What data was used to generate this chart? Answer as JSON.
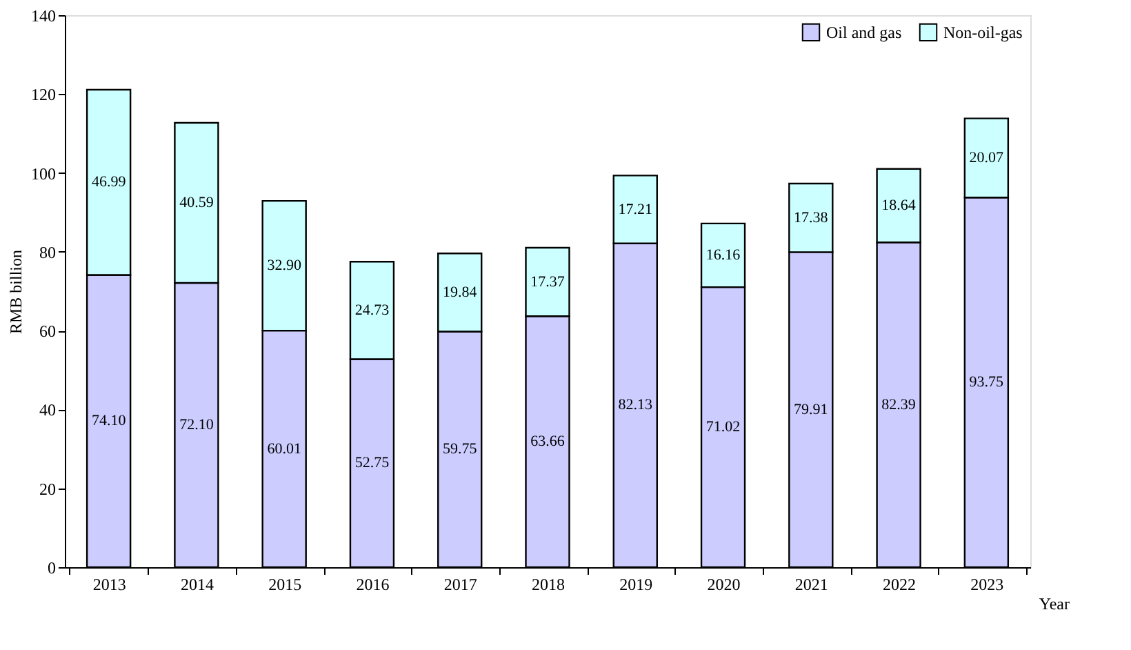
{
  "chart_data": {
    "type": "bar",
    "stacked": true,
    "xlabel": "Year",
    "ylabel": "RMB billion",
    "categories": [
      "2013",
      "2014",
      "2015",
      "2016",
      "2017",
      "2018",
      "2019",
      "2020",
      "2021",
      "2022",
      "2023"
    ],
    "series": [
      {
        "name": "Oil and gas",
        "color": "#ccccff",
        "values": [
          74.1,
          72.1,
          60.01,
          52.75,
          59.75,
          63.66,
          82.13,
          71.02,
          79.91,
          82.39,
          93.75
        ],
        "value_labels": [
          "74.10",
          "72.10",
          "60.01",
          "52.75",
          "59.75",
          "63.66",
          "82.13",
          "71.02",
          "79.91",
          "82.39",
          "93.75"
        ]
      },
      {
        "name": "Non-oil-gas",
        "color": "#ccffff",
        "values": [
          46.99,
          40.59,
          32.9,
          24.73,
          19.84,
          17.37,
          17.21,
          16.16,
          17.38,
          18.64,
          20.07
        ],
        "value_labels": [
          "46.99",
          "40.59",
          "32.90",
          "24.73",
          "19.84",
          "17.37",
          "17.21",
          "16.16",
          "17.38",
          "18.64",
          "20.07"
        ]
      }
    ],
    "ylim": [
      0,
      140
    ],
    "yticks": [
      0,
      20,
      40,
      60,
      80,
      100,
      120,
      140
    ],
    "grid": false,
    "legend": "top right"
  }
}
